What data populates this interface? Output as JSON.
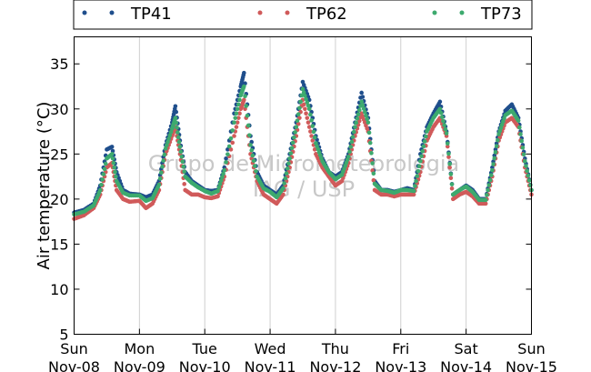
{
  "chart_data": {
    "type": "scatter",
    "ylabel": "Air temperature (°C)",
    "ylim": [
      5,
      38
    ],
    "xlim": [
      0,
      7
    ],
    "yticks": [
      5,
      10,
      15,
      20,
      25,
      30,
      35
    ],
    "xticks": [
      {
        "x": 0,
        "day": "Sun",
        "date": "Nov-08"
      },
      {
        "x": 1,
        "day": "Mon",
        "date": "Nov-09"
      },
      {
        "x": 2,
        "day": "Tue",
        "date": "Nov-10"
      },
      {
        "x": 3,
        "day": "Wed",
        "date": "Nov-11"
      },
      {
        "x": 4,
        "day": "Thu",
        "date": "Nov-12"
      },
      {
        "x": 5,
        "day": "Fri",
        "date": "Nov-13"
      },
      {
        "x": 6,
        "day": "Sat",
        "date": "Nov-14"
      },
      {
        "x": 7,
        "day": "Sun",
        "date": "Nov-15"
      }
    ],
    "grid": "vertical",
    "legend_placement": "top, above plot",
    "watermark": [
      "Grupo de Micrometeorologia",
      "IAG / USP"
    ],
    "series": [
      {
        "name": "TP41",
        "color": "#1f4e8c",
        "points": [
          [
            0,
            18.5
          ],
          [
            0.15,
            18.8
          ],
          [
            0.3,
            19.5
          ],
          [
            0.4,
            21.5
          ],
          [
            0.5,
            25.5
          ],
          [
            0.58,
            25.8
          ],
          [
            0.65,
            23.0
          ],
          [
            0.75,
            21.0
          ],
          [
            0.85,
            20.6
          ],
          [
            1.0,
            20.5
          ],
          [
            1.1,
            20.2
          ],
          [
            1.2,
            20.5
          ],
          [
            1.3,
            22.0
          ],
          [
            1.4,
            26.0
          ],
          [
            1.5,
            28.5
          ],
          [
            1.55,
            30.3
          ],
          [
            1.62,
            26.5
          ],
          [
            1.7,
            23.0
          ],
          [
            1.8,
            22.0
          ],
          [
            1.9,
            21.5
          ],
          [
            2.0,
            21.0
          ],
          [
            2.1,
            20.9
          ],
          [
            2.2,
            21.0
          ],
          [
            2.3,
            23.5
          ],
          [
            2.45,
            29.5
          ],
          [
            2.55,
            32.5
          ],
          [
            2.6,
            34.0
          ],
          [
            2.7,
            27.0
          ],
          [
            2.8,
            23.0
          ],
          [
            2.9,
            21.5
          ],
          [
            3.0,
            21.0
          ],
          [
            3.1,
            20.5
          ],
          [
            3.2,
            21.5
          ],
          [
            3.3,
            25.0
          ],
          [
            3.4,
            28.5
          ],
          [
            3.5,
            33.0
          ],
          [
            3.6,
            31.0
          ],
          [
            3.7,
            27.0
          ],
          [
            3.8,
            24.5
          ],
          [
            3.9,
            23.0
          ],
          [
            4.0,
            22.5
          ],
          [
            4.1,
            23.0
          ],
          [
            4.2,
            25.0
          ],
          [
            4.3,
            28.5
          ],
          [
            4.4,
            31.8
          ],
          [
            4.5,
            29.0
          ],
          [
            4.6,
            22.0
          ],
          [
            4.7,
            21.0
          ],
          [
            4.8,
            21.0
          ],
          [
            4.9,
            20.8
          ],
          [
            5.0,
            21.0
          ],
          [
            5.1,
            21.2
          ],
          [
            5.2,
            21.0
          ],
          [
            5.3,
            25.0
          ],
          [
            5.4,
            28.0
          ],
          [
            5.5,
            29.5
          ],
          [
            5.6,
            30.8
          ],
          [
            5.7,
            27.5
          ],
          [
            5.8,
            20.5
          ],
          [
            5.9,
            21.0
          ],
          [
            6.0,
            21.5
          ],
          [
            6.1,
            21.0
          ],
          [
            6.2,
            20.0
          ],
          [
            6.3,
            20.0
          ],
          [
            6.4,
            23.5
          ],
          [
            6.5,
            27.5
          ],
          [
            6.6,
            29.8
          ],
          [
            6.7,
            30.5
          ],
          [
            6.8,
            29.0
          ],
          [
            6.9,
            24.5
          ],
          [
            7.0,
            21.0
          ]
        ]
      },
      {
        "name": "TP62",
        "color": "#d05a5a",
        "points": [
          [
            0,
            17.8
          ],
          [
            0.15,
            18.2
          ],
          [
            0.3,
            19.0
          ],
          [
            0.4,
            20.5
          ],
          [
            0.5,
            23.5
          ],
          [
            0.58,
            24.0
          ],
          [
            0.65,
            21.0
          ],
          [
            0.75,
            20.0
          ],
          [
            0.85,
            19.7
          ],
          [
            1.0,
            19.8
          ],
          [
            1.1,
            19.0
          ],
          [
            1.2,
            19.5
          ],
          [
            1.3,
            21.0
          ],
          [
            1.4,
            25.0
          ],
          [
            1.5,
            27.0
          ],
          [
            1.55,
            28.0
          ],
          [
            1.62,
            25.0
          ],
          [
            1.7,
            21.0
          ],
          [
            1.8,
            20.5
          ],
          [
            1.9,
            20.5
          ],
          [
            2.0,
            20.2
          ],
          [
            2.1,
            20.1
          ],
          [
            2.2,
            20.3
          ],
          [
            2.3,
            22.5
          ],
          [
            2.45,
            27.0
          ],
          [
            2.55,
            30.0
          ],
          [
            2.6,
            31.0
          ],
          [
            2.7,
            25.0
          ],
          [
            2.8,
            22.0
          ],
          [
            2.9,
            20.5
          ],
          [
            3.0,
            20.0
          ],
          [
            3.1,
            19.5
          ],
          [
            3.2,
            20.5
          ],
          [
            3.3,
            23.5
          ],
          [
            3.4,
            27.0
          ],
          [
            3.5,
            31.0
          ],
          [
            3.6,
            28.0
          ],
          [
            3.7,
            25.0
          ],
          [
            3.8,
            23.5
          ],
          [
            3.9,
            22.5
          ],
          [
            4.0,
            21.5
          ],
          [
            4.1,
            22.0
          ],
          [
            4.2,
            24.0
          ],
          [
            4.3,
            27.0
          ],
          [
            4.4,
            29.5
          ],
          [
            4.5,
            27.5
          ],
          [
            4.6,
            21.0
          ],
          [
            4.7,
            20.5
          ],
          [
            4.8,
            20.5
          ],
          [
            4.9,
            20.3
          ],
          [
            5.0,
            20.5
          ],
          [
            5.1,
            20.5
          ],
          [
            5.2,
            20.5
          ],
          [
            5.3,
            23.0
          ],
          [
            5.4,
            26.5
          ],
          [
            5.5,
            28.0
          ],
          [
            5.6,
            29.0
          ],
          [
            5.7,
            27.0
          ],
          [
            5.8,
            20.0
          ],
          [
            5.9,
            20.5
          ],
          [
            6.0,
            20.8
          ],
          [
            6.1,
            20.3
          ],
          [
            6.2,
            19.5
          ],
          [
            6.3,
            19.5
          ],
          [
            6.4,
            22.5
          ],
          [
            6.5,
            26.5
          ],
          [
            6.6,
            28.5
          ],
          [
            6.7,
            29.0
          ],
          [
            6.8,
            28.0
          ],
          [
            6.9,
            23.5
          ],
          [
            7.0,
            20.5
          ]
        ]
      },
      {
        "name": "TP73",
        "color": "#3daa6e",
        "points": [
          [
            0,
            18.3
          ],
          [
            0.15,
            18.6
          ],
          [
            0.3,
            19.3
          ],
          [
            0.4,
            21.0
          ],
          [
            0.5,
            24.5
          ],
          [
            0.58,
            25.0
          ],
          [
            0.65,
            22.0
          ],
          [
            0.75,
            20.7
          ],
          [
            0.85,
            20.4
          ],
          [
            1.0,
            20.4
          ],
          [
            1.1,
            19.8
          ],
          [
            1.2,
            20.1
          ],
          [
            1.3,
            21.6
          ],
          [
            1.4,
            25.6
          ],
          [
            1.5,
            27.8
          ],
          [
            1.55,
            29.0
          ],
          [
            1.62,
            25.8
          ],
          [
            1.7,
            22.5
          ],
          [
            1.8,
            21.8
          ],
          [
            1.9,
            21.3
          ],
          [
            2.0,
            20.9
          ],
          [
            2.1,
            20.6
          ],
          [
            2.2,
            20.9
          ],
          [
            2.3,
            23.2
          ],
          [
            2.45,
            28.5
          ],
          [
            2.55,
            31.5
          ],
          [
            2.6,
            32.5
          ],
          [
            2.7,
            26.0
          ],
          [
            2.8,
            22.5
          ],
          [
            2.9,
            21.2
          ],
          [
            3.0,
            20.8
          ],
          [
            3.1,
            20.2
          ],
          [
            3.2,
            21.2
          ],
          [
            3.3,
            24.5
          ],
          [
            3.4,
            28.0
          ],
          [
            3.5,
            32.2
          ],
          [
            3.6,
            30.0
          ],
          [
            3.7,
            26.2
          ],
          [
            3.8,
            24.2
          ],
          [
            3.9,
            23.0
          ],
          [
            4.0,
            22.2
          ],
          [
            4.1,
            22.7
          ],
          [
            4.2,
            24.7
          ],
          [
            4.3,
            28.0
          ],
          [
            4.4,
            30.8
          ],
          [
            4.5,
            28.5
          ],
          [
            4.6,
            21.7
          ],
          [
            4.7,
            21.0
          ],
          [
            4.8,
            20.9
          ],
          [
            4.9,
            20.7
          ],
          [
            5.0,
            21.0
          ],
          [
            5.1,
            21.0
          ],
          [
            5.2,
            20.9
          ],
          [
            5.3,
            24.2
          ],
          [
            5.4,
            27.5
          ],
          [
            5.5,
            29.0
          ],
          [
            5.6,
            30.0
          ],
          [
            5.7,
            27.3
          ],
          [
            5.8,
            20.5
          ],
          [
            5.9,
            21.0
          ],
          [
            6.0,
            21.4
          ],
          [
            6.1,
            20.8
          ],
          [
            6.2,
            19.9
          ],
          [
            6.3,
            19.9
          ],
          [
            6.4,
            23.2
          ],
          [
            6.5,
            27.2
          ],
          [
            6.6,
            29.3
          ],
          [
            6.7,
            29.8
          ],
          [
            6.8,
            28.7
          ],
          [
            6.9,
            24.2
          ],
          [
            7.0,
            21.0
          ]
        ]
      }
    ]
  }
}
